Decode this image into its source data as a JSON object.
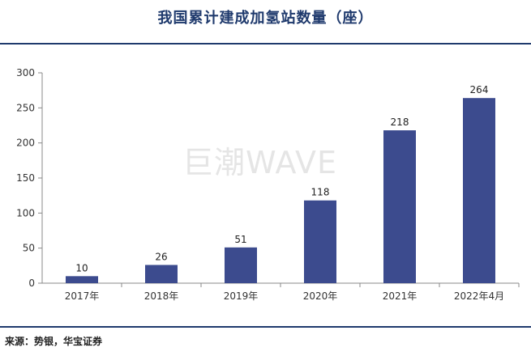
{
  "title": "我国累计建成加氢站数量（座）",
  "watermark": "巨潮WAVE",
  "source": "来源：势银，华宝证券",
  "colors": {
    "bar": "#3c4b8e",
    "title": "#1f3a6d",
    "rule": "#1f3a6d"
  },
  "chart_data": {
    "type": "bar",
    "categories": [
      "2017年",
      "2018年",
      "2019年",
      "2020年",
      "2021年",
      "2022年4月"
    ],
    "values": [
      10,
      26,
      51,
      118,
      218,
      264
    ],
    "data_labels": [
      "10",
      "26",
      "51",
      "118",
      "218",
      "264"
    ],
    "yticks": [
      "0",
      "50",
      "100",
      "150",
      "200",
      "250",
      "300"
    ],
    "ylim": [
      0,
      300
    ],
    "grid": false,
    "legend": "none"
  }
}
